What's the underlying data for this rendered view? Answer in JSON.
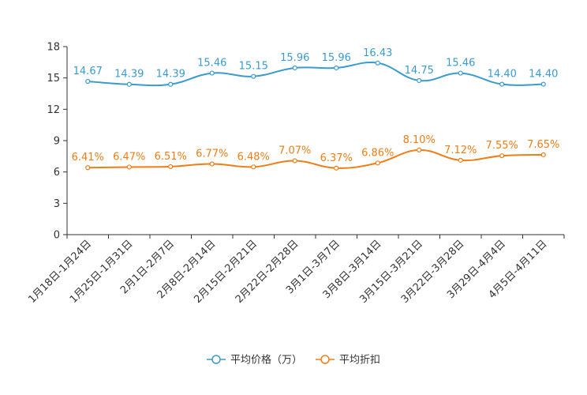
{
  "chart_data": {
    "type": "line",
    "categories": [
      "1月18日-1月24日",
      "1月25日-1月31日",
      "2月1日-2月7日",
      "2月8日-2月14日",
      "2月15日-2月21日",
      "2月22日-2月28日",
      "3月1日-3月7日",
      "3月8日-3月14日",
      "3月15日-3月21日",
      "3月22日-3月28日",
      "3月29日-4月4日",
      "4月5日-4月11日"
    ],
    "ylim": [
      0,
      18
    ],
    "yticks": [
      0,
      3,
      6,
      9,
      12,
      15,
      18
    ],
    "series": [
      {
        "name": "平均价格（万）",
        "color": "#3a9bd0",
        "values": [
          14.67,
          14.39,
          14.39,
          15.46,
          15.15,
          15.96,
          15.96,
          16.43,
          14.75,
          15.46,
          14.4,
          14.4
        ],
        "labels": [
          "14.67",
          "14.39",
          "14.39",
          "15.46",
          "15.15",
          "15.96",
          "15.96",
          "16.43",
          "14.75",
          "15.46",
          "14.40",
          "14.40"
        ]
      },
      {
        "name": "平均折扣",
        "color": "#f27d16",
        "values": [
          6.41,
          6.47,
          6.51,
          6.77,
          6.48,
          7.07,
          6.37,
          6.86,
          8.1,
          7.12,
          7.55,
          7.65
        ],
        "labels": [
          "6.41%",
          "6.47%",
          "6.51%",
          "6.77%",
          "6.48%",
          "7.07%",
          "6.37%",
          "6.86%",
          "8.10%",
          "7.12%",
          "7.55%",
          "7.65%"
        ]
      }
    ],
    "legend_position": "bottom-center",
    "grid": false
  }
}
